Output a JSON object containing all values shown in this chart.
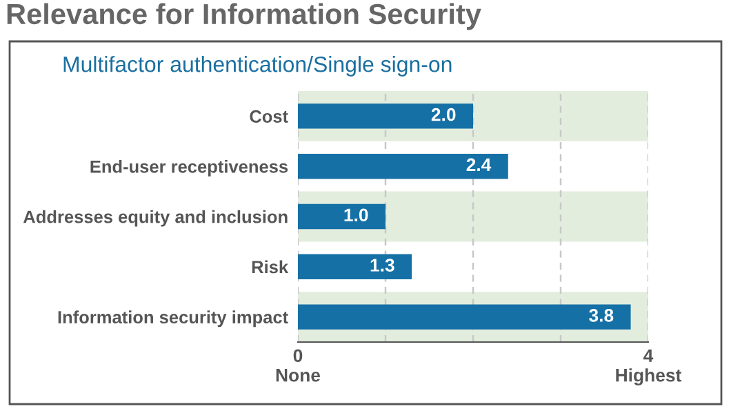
{
  "chart_data": {
    "type": "bar",
    "orientation": "horizontal",
    "title": "Relevance for Information Security",
    "subtitle": "Multifactor authentication/Single sign-on",
    "categories": [
      "Cost",
      "End-user receptiveness",
      "Addresses equity and inclusion",
      "Risk",
      "Information security impact"
    ],
    "values": [
      2.0,
      2.4,
      1.0,
      1.3,
      3.8
    ],
    "color": "#1570a6",
    "value_labels": [
      "2.0",
      "2.4",
      "1.0",
      "1.3",
      "3.8"
    ],
    "xlim": [
      0,
      4
    ],
    "xticks": [
      {
        "value": 0,
        "label": "0\nNone"
      },
      {
        "value": 1,
        "label": null
      },
      {
        "value": 2,
        "label": null
      },
      {
        "value": 3,
        "label": null
      },
      {
        "value": 4,
        "label": "4\nHighest"
      }
    ],
    "grid": "x",
    "bands": [
      {
        "axis": "y",
        "from": "Cost",
        "to": "Cost",
        "color": "#e3edde"
      },
      {
        "axis": "y",
        "from": "Addresses equity and inclusion",
        "to": "Addresses equity and inclusion",
        "color": "#e3edde"
      },
      {
        "axis": "y",
        "from": "Information security impact",
        "to": "Information security impact",
        "color": "#e3edde"
      }
    ]
  }
}
